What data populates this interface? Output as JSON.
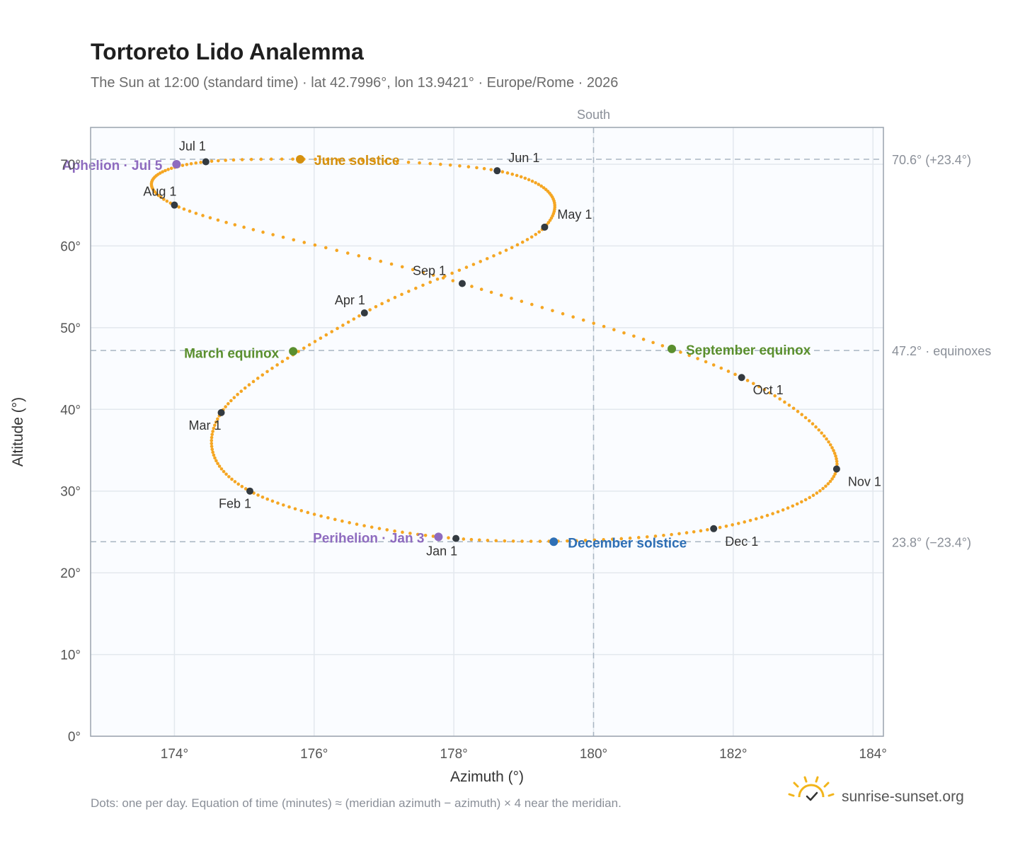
{
  "chart_data": {
    "type": "scatter",
    "title": "Tortoreto Lido Analemma",
    "subtitle": "The Sun at 12:00 (standard time) · lat 42.7996°, lon 13.9421° · Europe/Rome · 2026",
    "xlabel": "Azimuth (°)",
    "ylabel": "Altitude (°)",
    "xlim": [
      172.8,
      184.15
    ],
    "ylim": [
      0,
      74.5
    ],
    "xticks": [
      174,
      176,
      178,
      180,
      182,
      184
    ],
    "xtick_labels": [
      "174°",
      "176°",
      "178°",
      "180°",
      "182°",
      "184°"
    ],
    "yticks": [
      0,
      10,
      20,
      30,
      40,
      50,
      60,
      70
    ],
    "ytick_labels": [
      "0°",
      "10°",
      "20°",
      "30°",
      "40°",
      "50°",
      "60°",
      "70°"
    ],
    "grid": true,
    "curve_color": "#f5a623",
    "marker_color": "#333a40",
    "south_line": {
      "azimuth": 180,
      "label": "South"
    },
    "reference_lines": [
      {
        "altitude": 70.6,
        "label": "70.6° (+23.4°)"
      },
      {
        "altitude": 47.2,
        "label": "47.2° · equinoxes"
      },
      {
        "altitude": 23.8,
        "label": "23.8° (−23.4°)"
      }
    ],
    "month_markers": [
      {
        "label": "Jan 1",
        "az": 178.03,
        "alt": 24.2
      },
      {
        "label": "Feb 1",
        "az": 175.08,
        "alt": 30.0
      },
      {
        "label": "Mar 1",
        "az": 174.67,
        "alt": 39.6
      },
      {
        "label": "Apr 1",
        "az": 176.72,
        "alt": 51.8
      },
      {
        "label": "May 1",
        "az": 179.3,
        "alt": 62.3
      },
      {
        "label": "Jun 1",
        "az": 178.62,
        "alt": 69.2
      },
      {
        "label": "Jul 1",
        "az": 174.45,
        "alt": 70.3
      },
      {
        "label": "Aug 1",
        "az": 174.0,
        "alt": 65.0
      },
      {
        "label": "Sep 1",
        "az": 178.12,
        "alt": 55.4
      },
      {
        "label": "Oct 1",
        "az": 182.12,
        "alt": 43.9
      },
      {
        "label": "Nov 1",
        "az": 183.48,
        "alt": 32.7
      },
      {
        "label": "Dec 1",
        "az": 181.72,
        "alt": 25.4
      }
    ],
    "events": [
      {
        "label": "June solstice",
        "az": 175.8,
        "alt": 70.6,
        "color": "#d4900f"
      },
      {
        "label": "Aphelion · Jul 5",
        "az": 174.03,
        "alt": 70.0,
        "color": "#8e6bbf"
      },
      {
        "label": "March equinox",
        "az": 175.7,
        "alt": 47.1,
        "color": "#5a8f2e"
      },
      {
        "label": "September equinox",
        "az": 181.12,
        "alt": 47.4,
        "color": "#5a8f2e"
      },
      {
        "label": "Perihelion · Jan 3",
        "az": 177.78,
        "alt": 24.4,
        "color": "#8e6bbf"
      },
      {
        "label": "December solstice",
        "az": 179.43,
        "alt": 23.8,
        "color": "#2e6fb5"
      }
    ],
    "footnote": "Dots: one per day. Equation of time (minutes) ≈ (meridian azimuth − azimuth) × 4 near the meridian."
  },
  "brand": {
    "name": "sunrise-sunset.org",
    "icon": "sun-logo-icon"
  }
}
